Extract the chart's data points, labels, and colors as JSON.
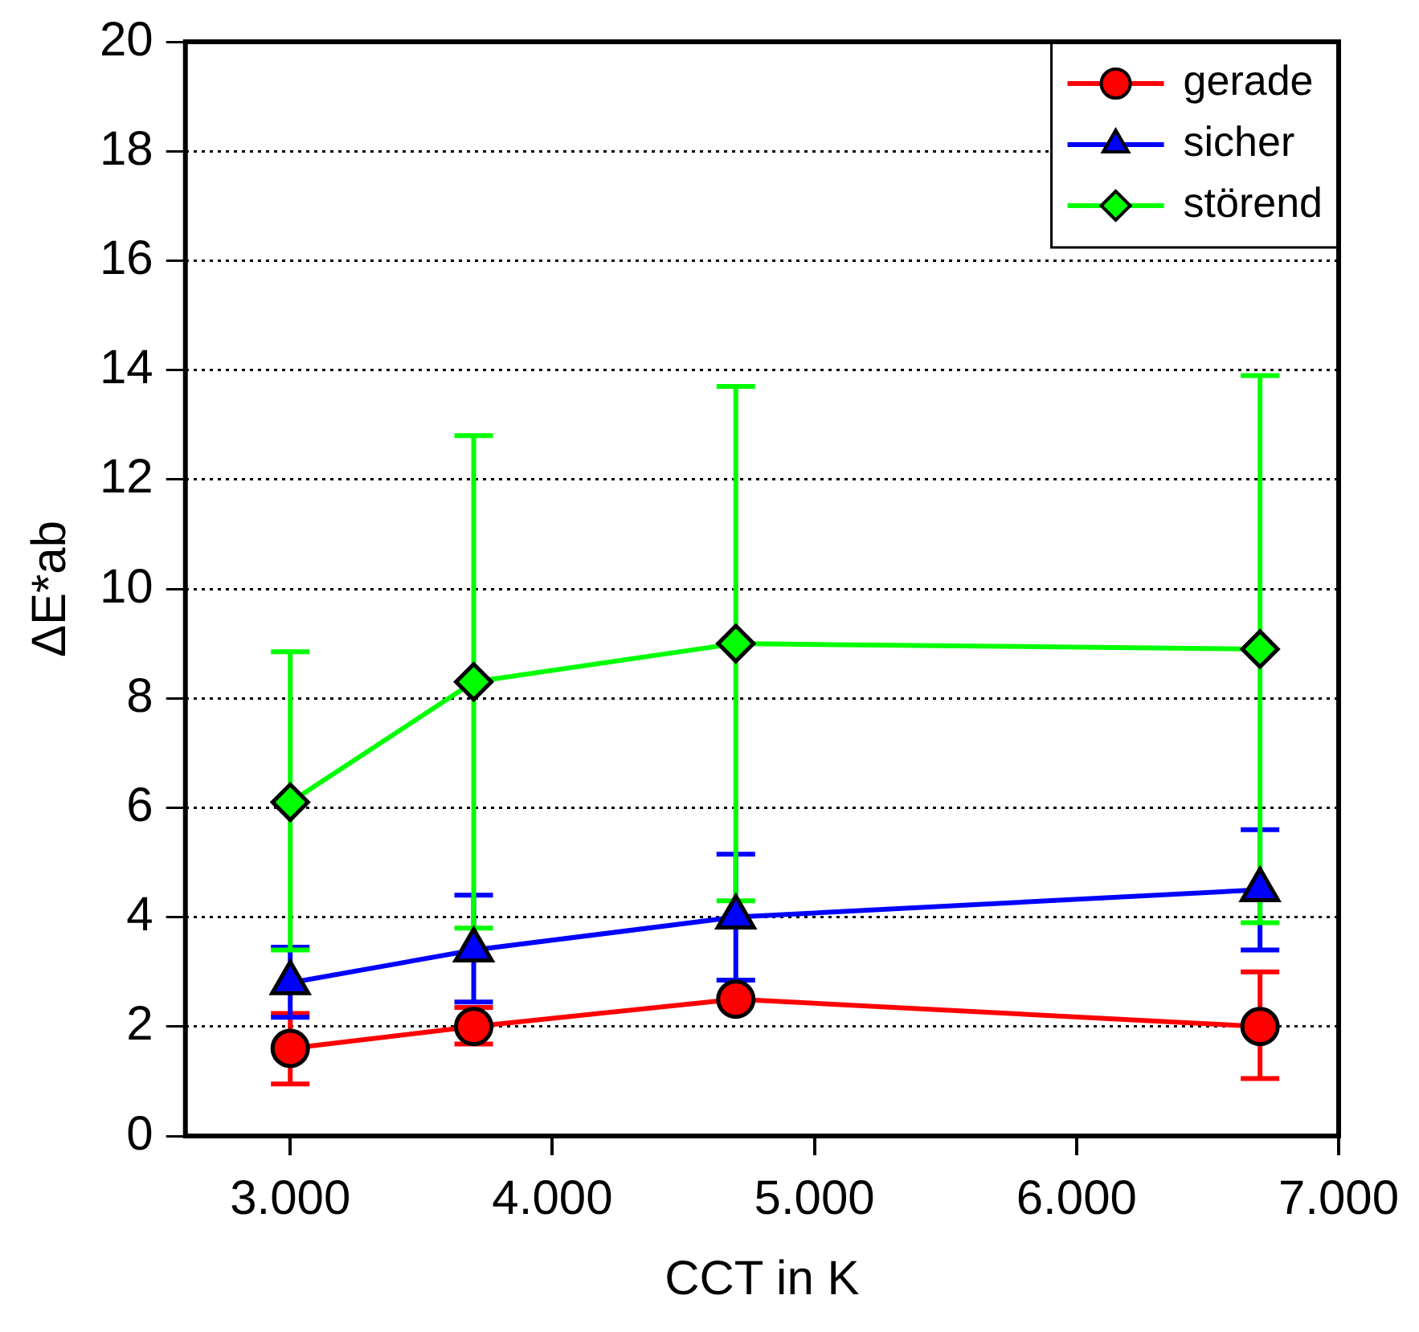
{
  "chart_data": {
    "type": "line",
    "xlabel": "CCT in K",
    "ylabel": "ΔE*ab",
    "x": [
      3000,
      3700,
      4700,
      6700
    ],
    "xlim": [
      2600,
      7000
    ],
    "xticks": [
      {
        "value": 3000,
        "label": "3.000"
      },
      {
        "value": 4000,
        "label": "4.000"
      },
      {
        "value": 5000,
        "label": "5.000"
      },
      {
        "value": 6000,
        "label": "6.000"
      },
      {
        "value": 7000,
        "label": "7.000"
      }
    ],
    "ylim": [
      0,
      20
    ],
    "yticks": [
      0,
      2,
      4,
      6,
      8,
      10,
      12,
      14,
      16,
      18,
      20
    ],
    "grid": "y",
    "legend": "top right",
    "line_style": "solid",
    "series": [
      {
        "name": "gerade",
        "color": "#ff0000",
        "marker": "circle",
        "values": [
          1.6,
          2.0,
          2.5,
          2.0
        ],
        "errors": [
          [
            0.95,
            2.24
          ],
          [
            1.68,
            2.35
          ],
          null,
          [
            1.05,
            3.0
          ]
        ]
      },
      {
        "name": "sicher",
        "color": "#0000ff",
        "marker": "triangle",
        "values": [
          2.8,
          3.4,
          4.0,
          4.5
        ],
        "errors": [
          [
            2.17,
            3.45
          ],
          [
            2.45,
            4.4
          ],
          [
            2.85,
            5.15
          ],
          [
            3.4,
            5.6
          ]
        ]
      },
      {
        "name": "störend",
        "color": "#00ff00",
        "marker": "diamond",
        "values": [
          6.1,
          8.3,
          9.0,
          8.9
        ],
        "errors": [
          [
            3.4,
            8.85
          ],
          [
            3.8,
            12.8
          ],
          [
            4.3,
            13.7
          ],
          [
            3.9,
            13.9
          ]
        ]
      }
    ]
  }
}
